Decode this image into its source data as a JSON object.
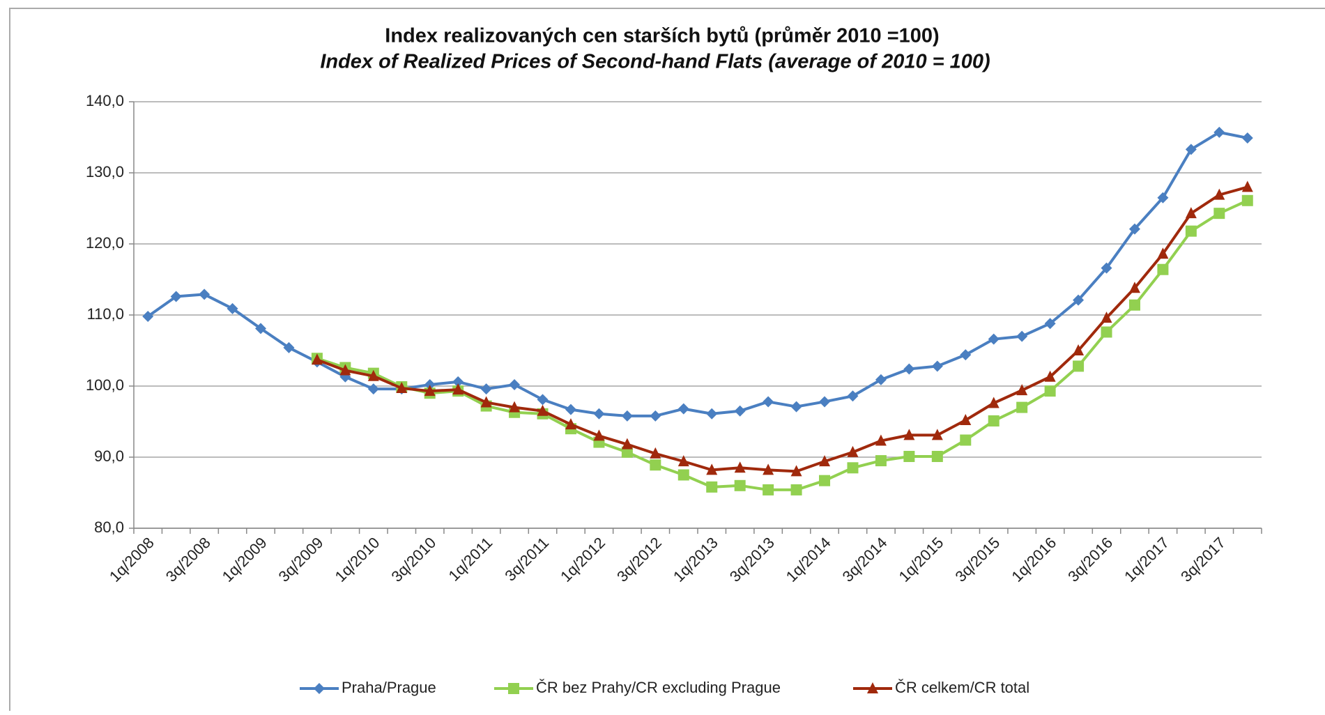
{
  "chart_data": {
    "type": "line",
    "title": "Index realizovaných cen starších bytů (průměr 2010 =100)",
    "subtitle": "Index of Realized Prices of Second-hand Flats (average of 2010 = 100)",
    "categories": [
      "1q/2008",
      null,
      "3q/2008",
      null,
      "1q/2009",
      null,
      "3q/2009",
      null,
      "1q/2010",
      null,
      "3q/2010",
      null,
      "1q/2011",
      null,
      "3q/2011",
      null,
      "1q/2012",
      null,
      "3q/2012",
      null,
      "1q/2013",
      null,
      "3q/2013",
      null,
      "1q/2014",
      null,
      "3q/2014",
      null,
      "1q/2015",
      null,
      "3q/2015",
      null,
      "1q/2016",
      null,
      "3q/2016",
      null,
      "1q/2017",
      null,
      "3q/2017",
      null
    ],
    "series": [
      {
        "name": "Praha/Prague",
        "color": "#4a7fc1",
        "marker": "diamond",
        "values": [
          109.8,
          112.6,
          112.9,
          110.9,
          108.1,
          105.4,
          103.4,
          101.3,
          99.6,
          99.6,
          100.2,
          100.6,
          99.6,
          100.2,
          98.1,
          96.7,
          96.1,
          95.8,
          95.8,
          96.8,
          96.1,
          96.5,
          97.8,
          97.1,
          97.8,
          98.6,
          100.9,
          102.4,
          102.8,
          104.4,
          106.6,
          107.0,
          108.8,
          112.1,
          116.6,
          122.1,
          126.5,
          133.3,
          135.7,
          134.9
        ]
      },
      {
        "name": "ČR bez Prahy/CR excluding Prague",
        "color": "#92d050",
        "marker": "square",
        "values": [
          null,
          null,
          null,
          null,
          null,
          null,
          103.9,
          102.6,
          101.8,
          99.9,
          99.0,
          99.3,
          97.2,
          96.3,
          96.1,
          94.0,
          92.1,
          90.7,
          88.9,
          87.5,
          85.8,
          86.0,
          85.4,
          85.4,
          86.7,
          88.5,
          89.5,
          90.1,
          90.1,
          92.4,
          95.1,
          97.0,
          99.3,
          102.8,
          107.6,
          111.4,
          116.4,
          121.8,
          124.3,
          126.1
        ]
      },
      {
        "name": "ČR celkem/CR total",
        "color": "#a0290c",
        "marker": "triangle",
        "values": [
          null,
          null,
          null,
          null,
          null,
          null,
          103.7,
          102.2,
          101.4,
          99.7,
          99.3,
          99.5,
          97.7,
          97.0,
          96.5,
          94.6,
          93.0,
          91.8,
          90.5,
          89.4,
          88.2,
          88.5,
          88.2,
          88.0,
          89.4,
          90.7,
          92.3,
          93.1,
          93.1,
          95.2,
          97.6,
          99.4,
          101.3,
          105.0,
          109.6,
          113.8,
          118.6,
          124.3,
          126.9,
          128.0
        ]
      }
    ],
    "ylim": [
      80,
      140
    ],
    "yticks": [
      {
        "value": 80,
        "label": "80,0"
      },
      {
        "value": 90,
        "label": "90,0"
      },
      {
        "value": 100,
        "label": "100,0"
      },
      {
        "value": 110,
        "label": "110,0"
      },
      {
        "value": 120,
        "label": "120,0"
      },
      {
        "value": 130,
        "label": "130,0"
      },
      {
        "value": 140,
        "label": "140,0"
      }
    ],
    "grid": true,
    "legend": "bottom"
  }
}
